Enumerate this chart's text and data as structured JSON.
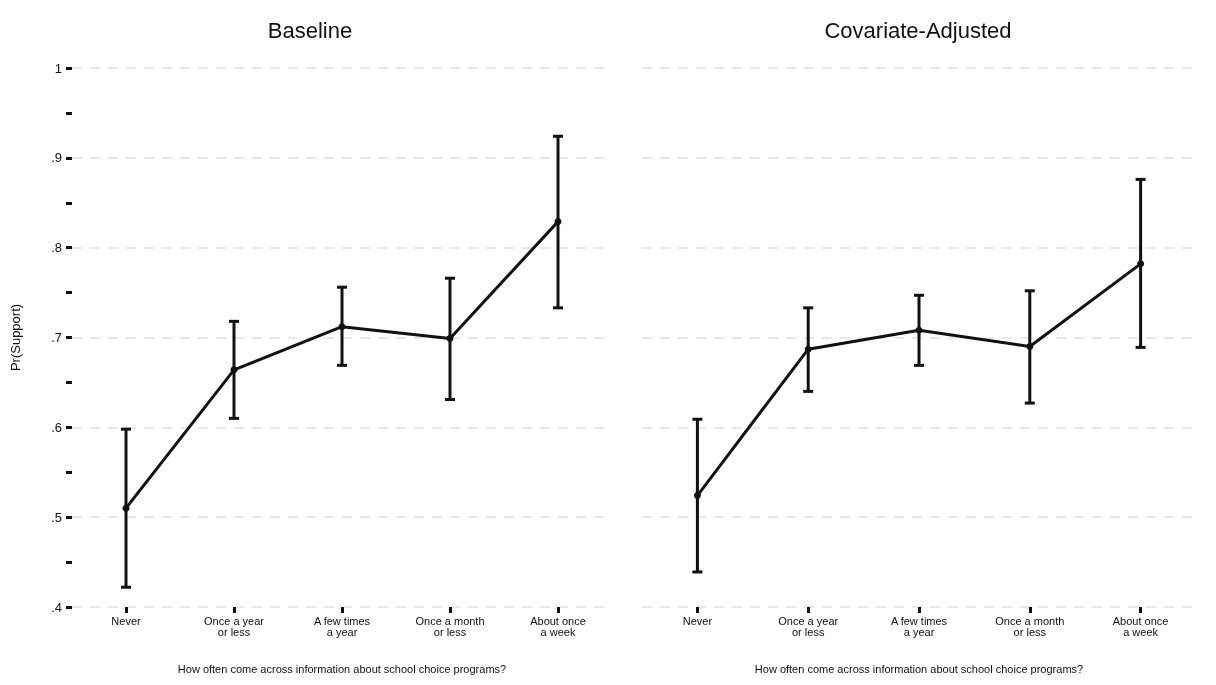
{
  "chart_data": [
    {
      "type": "line",
      "title": "Baseline",
      "xlabel": "How often come across information about school choice programs?",
      "ylabel": "Pr(Support)",
      "categories": [
        "Never",
        "Once a year\nor less",
        "A few times\na year",
        "Once a month\nor less",
        "About once\na week"
      ],
      "values": [
        0.51,
        0.664,
        0.712,
        0.699,
        0.829
      ],
      "errors": [
        [
          0.422,
          0.598
        ],
        [
          0.61,
          0.718
        ],
        [
          0.669,
          0.756
        ],
        [
          0.631,
          0.766
        ],
        [
          0.733,
          0.924
        ]
      ],
      "color": "#111111",
      "marker": "circle",
      "grid": "y",
      "ylim": [
        0.4,
        1
      ],
      "yticks": [
        {
          "value": 0.4,
          "label": ".4"
        },
        {
          "value": 0.45,
          "label": null
        },
        {
          "value": 0.5,
          "label": ".5"
        },
        {
          "value": 0.55,
          "label": null
        },
        {
          "value": 0.6,
          "label": ".6"
        },
        {
          "value": 0.65,
          "label": null
        },
        {
          "value": 0.7,
          "label": ".7"
        },
        {
          "value": 0.75,
          "label": null
        },
        {
          "value": 0.8,
          "label": ".8"
        },
        {
          "value": 0.85,
          "label": null
        },
        {
          "value": 0.9,
          "label": ".9"
        },
        {
          "value": 0.95,
          "label": null
        },
        {
          "value": 1,
          "label": "1"
        }
      ]
    },
    {
      "type": "line",
      "title": "Covariate-Adjusted",
      "xlabel": "How often come across information about school choice programs?",
      "categories": [
        "Never",
        "Once a year\nor less",
        "A few times\na year",
        "Once a month\nor less",
        "About once\na week"
      ],
      "values": [
        0.524,
        0.687,
        0.708,
        0.69,
        0.782
      ],
      "errors": [
        [
          0.439,
          0.609
        ],
        [
          0.64,
          0.733
        ],
        [
          0.669,
          0.747
        ],
        [
          0.627,
          0.752
        ],
        [
          0.689,
          0.876
        ]
      ],
      "color": "#111111",
      "marker": "circle",
      "grid": "y",
      "tick_labels": "x",
      "ylim": [
        0.4,
        1
      ],
      "yticks": [
        0.4,
        0.5,
        0.6,
        0.7,
        0.8,
        0.9,
        1
      ]
    }
  ]
}
